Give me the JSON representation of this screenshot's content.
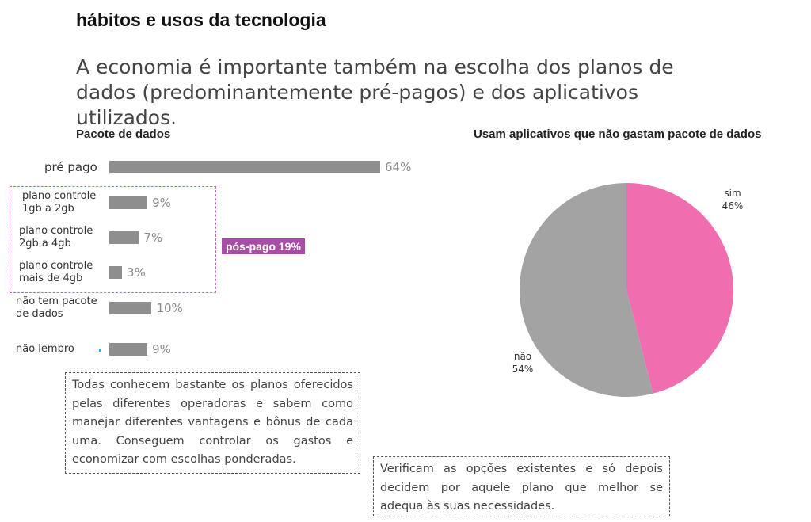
{
  "header": {
    "section_title": "hábitos e usos da tecnologia",
    "subtitle": "A economia é importante também na escolha dos planos de dados (predominantemente pré-pagos) e dos aplicativos utilizados."
  },
  "chart_data": [
    {
      "type": "bar",
      "orientation": "horizontal",
      "title": "Pacote de dados",
      "categories": [
        "pré pago",
        "plano controle 1gb a 2gb",
        "plano controle 2gb a 4gb",
        "plano controle mais de 4gb",
        "não tem pacote de dados",
        "não lembro"
      ],
      "category_lines": [
        [
          "pré pago"
        ],
        [
          "plano controle",
          "1gb a 2gb"
        ],
        [
          "plano controle",
          "2gb a 4gb"
        ],
        [
          "plano controle",
          "mais de 4gb"
        ],
        [
          "não tem pacote",
          "de dados"
        ],
        [
          "não lembro"
        ]
      ],
      "values": [
        64,
        9,
        7,
        3,
        10,
        9
      ],
      "value_labels": [
        "64%",
        "9%",
        "7%",
        "3%",
        "10%",
        "9%"
      ],
      "unit": "%",
      "xlim": [
        0,
        64
      ],
      "bar_color": "#8e8e8e",
      "group_annotation": {
        "label": "pós-pago 19%",
        "members": [
          "plano controle 1gb a 2gb",
          "plano controle 2gb a 4gb",
          "plano controle mais de 4gb"
        ],
        "color": "#a64ea6"
      }
    },
    {
      "type": "pie",
      "title": "Usam aplicativos que não gastam pacote de dados",
      "labels": [
        "sim",
        "não"
      ],
      "values": [
        46,
        54
      ],
      "value_labels": [
        "46%",
        "54%"
      ],
      "colors": [
        "#f06eb0",
        "#a3a3a3"
      ]
    }
  ],
  "notes": {
    "left": "Todas conhecem bastante os planos oferecidos pelas diferentes operadoras e sabem como manejar diferentes vantagens e bônus de cada uma. Conseguem controlar os gastos e economizar com escolhas ponderadas.",
    "right": "Verificam as opções existentes e só depois decidem por aquele plano que melhor se adequa às suas necessidades."
  }
}
